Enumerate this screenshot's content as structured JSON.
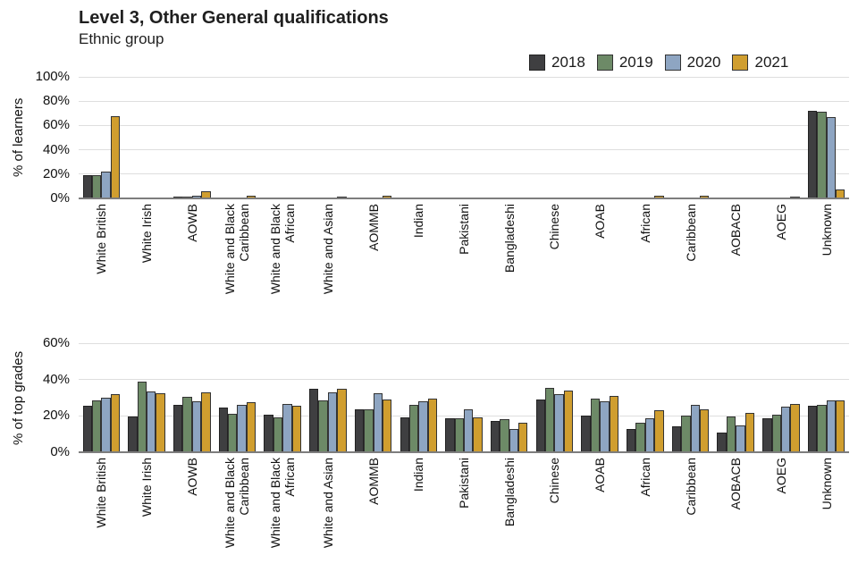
{
  "header": {
    "title": "Level 3, Other General qualifications",
    "subtitle": "Ethnic group"
  },
  "legend": {
    "position": "top-right"
  },
  "chart_data": [
    {
      "type": "bar",
      "title": "Level 3, Other General qualifications",
      "subtitle": "Ethnic group",
      "ylabel": "% of learners",
      "xlabel": "",
      "ylim": [
        0,
        100
      ],
      "yticks": [
        "0%",
        "20%",
        "40%",
        "60%",
        "80%",
        "100%"
      ],
      "grid": true,
      "legend_position": "top-right",
      "categories": [
        "White British",
        "White Irish",
        "AOWB",
        "White and Black\nCaribbean",
        "White and Black\nAfrican",
        "White and Asian",
        "AOMMB",
        "Indian",
        "Pakistani",
        "Bangladeshi",
        "Chinese",
        "AOAB",
        "African",
        "Caribbean",
        "AOBACB",
        "AOEG",
        "Unknown"
      ],
      "series": [
        {
          "name": "2018",
          "color": "#3f3f41",
          "edge": "#232323",
          "values": [
            19,
            0.3,
            1.5,
            0.5,
            0.3,
            0.5,
            0.5,
            0.4,
            0.5,
            0.3,
            0.2,
            0.3,
            0.5,
            0.3,
            0.2,
            0.2,
            72
          ]
        },
        {
          "name": "2019",
          "color": "#6d8a67",
          "edge": "#333333",
          "values": [
            19,
            0.3,
            1.5,
            0.5,
            0.3,
            0.5,
            0.5,
            0.4,
            0.5,
            0.3,
            0.2,
            0.3,
            0.5,
            0.3,
            0.2,
            0.2,
            71
          ]
        },
        {
          "name": "2020",
          "color": "#8ea5c2",
          "edge": "#333333",
          "values": [
            22,
            0.3,
            2,
            0.5,
            0.4,
            0.5,
            0.5,
            0.5,
            0.5,
            0.3,
            0.2,
            0.3,
            0.5,
            0.3,
            0.2,
            0.3,
            67
          ]
        },
        {
          "name": "2021",
          "color": "#d09e2f",
          "edge": "#333333",
          "values": [
            68,
            0.5,
            6,
            2,
            1,
            1.5,
            2,
            1,
            1,
            0.5,
            0.5,
            1,
            2.5,
            2,
            0.5,
            1.5,
            7.5
          ]
        }
      ]
    },
    {
      "type": "bar",
      "title": "",
      "ylabel": "% of top grades",
      "xlabel": "",
      "ylim": [
        0,
        60
      ],
      "yticks": [
        "0%",
        "20%",
        "40%",
        "60%"
      ],
      "grid": true,
      "categories": [
        "White British",
        "White Irish",
        "AOWB",
        "White and Black\nCaribbean",
        "White and Black\nAfrican",
        "White and Asian",
        "AOMMB",
        "Indian",
        "Pakistani",
        "Bangladeshi",
        "Chinese",
        "AOAB",
        "African",
        "Caribbean",
        "AOBACB",
        "AOEG",
        "Unknown"
      ],
      "series": [
        {
          "name": "2018",
          "color": "#3f3f41",
          "edge": "#232323",
          "values": [
            25.5,
            19.5,
            26,
            24.5,
            20.5,
            35,
            23.5,
            19,
            18.5,
            17,
            29,
            20,
            13,
            14.5,
            11,
            18.5,
            25.5
          ]
        },
        {
          "name": "2019",
          "color": "#6d8a67",
          "edge": "#333333",
          "values": [
            28.5,
            39,
            30.5,
            21,
            19,
            28.5,
            23.5,
            26,
            18.5,
            18,
            35.5,
            29.5,
            16,
            20,
            19.5,
            20.5,
            26
          ]
        },
        {
          "name": "2020",
          "color": "#8ea5c2",
          "edge": "#333333",
          "values": [
            30,
            33.5,
            28,
            26,
            26.5,
            33,
            32.5,
            28,
            23.5,
            13,
            32,
            28,
            18.5,
            26,
            15,
            25,
            28.5
          ]
        },
        {
          "name": "2021",
          "color": "#d09e2f",
          "edge": "#333333",
          "values": [
            32,
            32.5,
            33,
            27.5,
            25.5,
            35,
            29,
            29.5,
            19,
            16,
            34,
            31,
            23,
            23.5,
            21.5,
            26.5,
            28.5
          ]
        }
      ]
    }
  ]
}
